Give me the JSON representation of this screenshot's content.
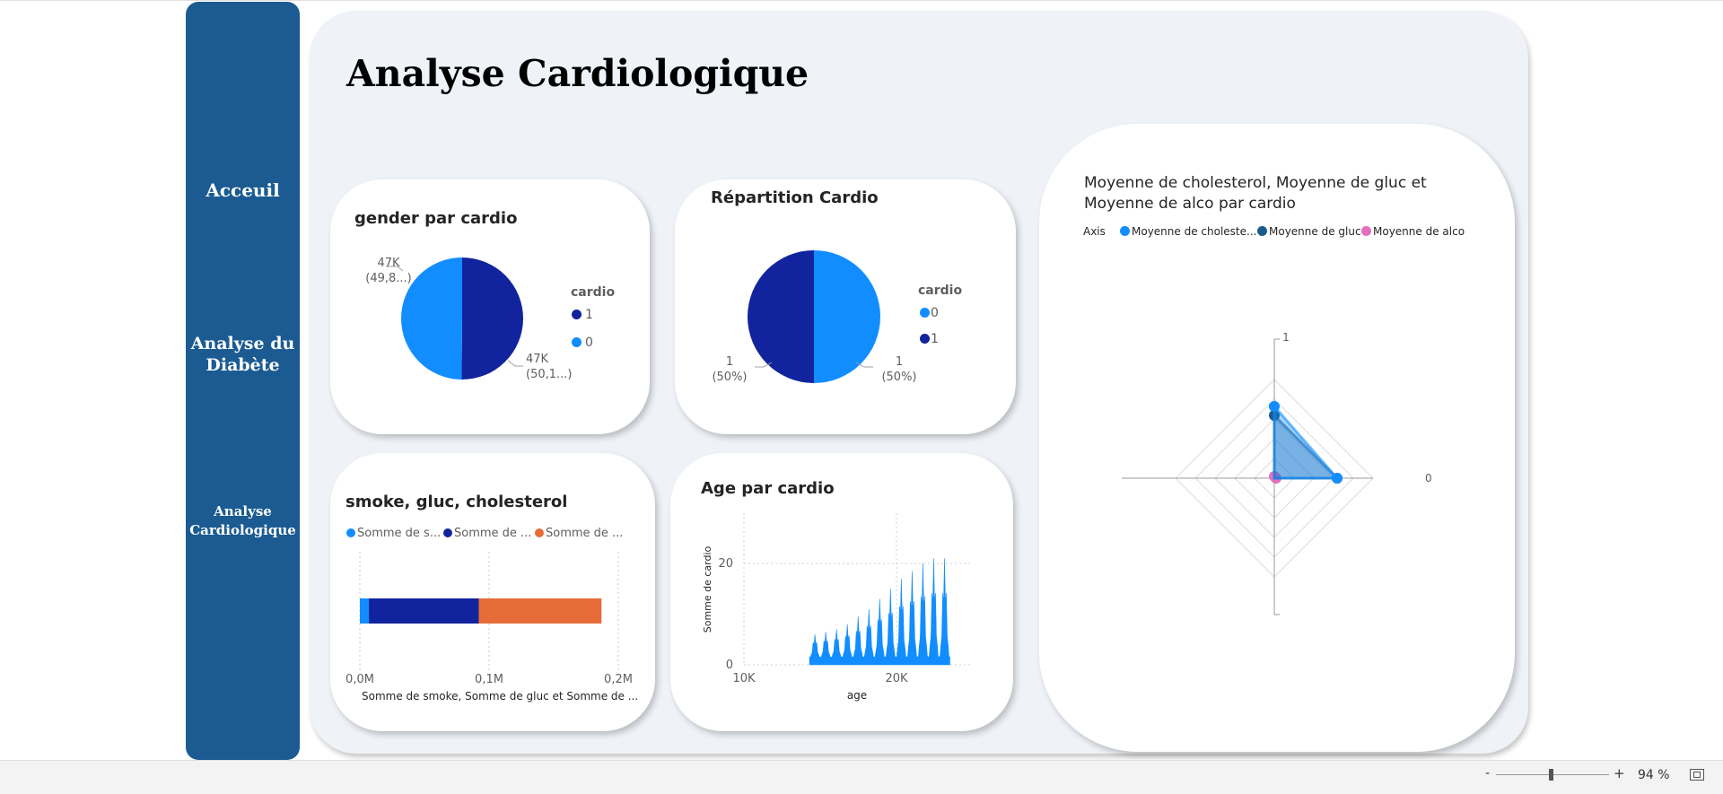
{
  "sidebar": {
    "items": [
      {
        "label": "Acceuil"
      },
      {
        "label_line1": "Analyse du",
        "label_line2": "Diabète"
      },
      {
        "label_line1": "Analyse",
        "label_line2": "Cardiologique"
      }
    ]
  },
  "page": {
    "title": "Analyse Cardiologique"
  },
  "visual_gender": {
    "title": "gender par cardio",
    "legend_title": "cardio",
    "legend": [
      {
        "label": "1",
        "color": "#12239e"
      },
      {
        "label": "0",
        "color": "#118dff"
      }
    ],
    "label_left_line1": "47K",
    "label_left_line2": "(49,8...)",
    "label_right_line1": "47K",
    "label_right_line2": "(50,1...)"
  },
  "visual_repartition": {
    "title": "Répartition Cardio",
    "legend_title": "cardio",
    "legend": [
      {
        "label": "0",
        "color": "#118dff"
      },
      {
        "label": "1",
        "color": "#12239e"
      }
    ],
    "label_left_line1": "1",
    "label_left_line2": "(50%)",
    "label_right_line1": "1",
    "label_right_line2": "(50%)"
  },
  "visual_smoke": {
    "title": "smoke, gluc, cholesterol",
    "legend": [
      {
        "label": "Somme de s...",
        "color": "#118dff"
      },
      {
        "label": "Somme de ...",
        "color": "#12239e"
      },
      {
        "label": "Somme de ...",
        "color": "#e66c37"
      }
    ],
    "xlabel": "Somme de smoke, Somme de gluc et Somme de ...",
    "ticks": [
      "0,0M",
      "0,1M",
      "0,2M"
    ]
  },
  "visual_age": {
    "title": "Age par cardio",
    "ylabel": "Somme de cardio",
    "xlabel": "age",
    "yticks": [
      "20",
      "0"
    ],
    "xticks": [
      "10K",
      "20K"
    ]
  },
  "visual_radar": {
    "title_line1": "Moyenne de cholesterol, Moyenne de gluc et",
    "title_line2": "Moyenne de alco par cardio",
    "legend_axis": "Axis",
    "legend": [
      {
        "label": "Moyenne de choleste...",
        "color": "#118dff"
      },
      {
        "label": "Moyenne de gluc",
        "color": "#1a5b8e"
      },
      {
        "label": "Moyenne de alco",
        "color": "#e36fbd"
      }
    ],
    "axis_top": "1",
    "axis_right": "0"
  },
  "statusbar": {
    "minus": "-",
    "plus": "+",
    "zoom": "94 %",
    "zoom_value": 94
  },
  "chart_data": [
    {
      "type": "pie",
      "title": "gender par cardio",
      "categories": [
        "1",
        "0"
      ],
      "values": [
        47,
        47
      ],
      "percent": [
        50.1,
        49.8
      ],
      "colors": [
        "#12239e",
        "#118dff"
      ]
    },
    {
      "type": "pie",
      "title": "Répartition Cardio",
      "categories": [
        "1",
        "0"
      ],
      "values": [
        1,
        1
      ],
      "percent": [
        50,
        50
      ],
      "colors": [
        "#12239e",
        "#118dff"
      ]
    },
    {
      "type": "bar",
      "orientation": "horizontal",
      "stacked": true,
      "title": "smoke, gluc, cholesterol",
      "series": [
        {
          "name": "Somme de s...",
          "values": [
            0.007
          ],
          "color": "#118dff"
        },
        {
          "name": "Somme de ...",
          "values": [
            0.085
          ],
          "color": "#12239e"
        },
        {
          "name": "Somme de ...",
          "values": [
            0.095
          ],
          "color": "#e66c37"
        }
      ],
      "xlabel": "Somme de smoke, Somme de gluc et Somme de ...",
      "xlim": [
        0,
        0.2
      ],
      "grid": true
    },
    {
      "type": "area",
      "title": "Age par cardio",
      "xlabel": "age",
      "ylabel": "Somme de cardio",
      "xlim": [
        10000,
        22500
      ],
      "ylim": [
        0,
        25
      ],
      "x_start": 14300,
      "x_end": 23500,
      "peaks": [
        6,
        6.5,
        7,
        8,
        9.5,
        11,
        13,
        15,
        17,
        18.5,
        20,
        21,
        21
      ],
      "color": "#118dff"
    },
    {
      "type": "radar",
      "axes": [
        "1",
        "0"
      ],
      "series": [
        {
          "name": "Moyenne de choleste...",
          "values": [
            0.8,
            0.7
          ],
          "color": "#118dff"
        },
        {
          "name": "Moyenne de gluc",
          "values": [
            0.7,
            0.7
          ],
          "color": "#1a5b8e"
        },
        {
          "name": "Moyenne de alco",
          "values": [
            0.02,
            0.02
          ],
          "color": "#e36fbd"
        }
      ],
      "rmax": 1.1
    }
  ]
}
